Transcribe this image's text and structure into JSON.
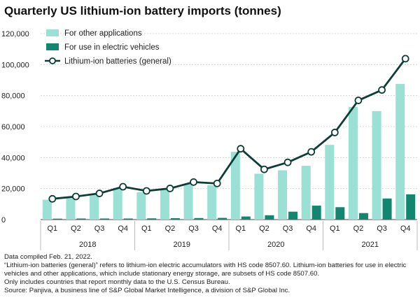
{
  "title": "Quarterly US lithium-ion battery imports (tonnes)",
  "chart_data": {
    "type": "bar",
    "y_ticks": [
      "0",
      "20,000",
      "40,000",
      "60,000",
      "80,000",
      "100,000",
      "120,000"
    ],
    "ylim": [
      0,
      120000
    ],
    "grid": true,
    "legend_position": "top-left",
    "quarters": [
      "Q1",
      "Q2",
      "Q3",
      "Q4",
      "Q1",
      "Q2",
      "Q3",
      "Q4",
      "Q1",
      "Q2",
      "Q3",
      "Q4",
      "Q1",
      "Q2",
      "Q3",
      "Q4"
    ],
    "years": [
      "2018",
      "2019",
      "2020",
      "2021"
    ],
    "series": [
      {
        "name": "For other applications",
        "type": "bar",
        "color": "#9be0d5",
        "values": [
          12800,
          14200,
          16200,
          20500,
          17700,
          19200,
          23200,
          22200,
          43700,
          29600,
          31800,
          34700,
          48200,
          72700,
          70000,
          87500
        ]
      },
      {
        "name": "For use in electric vehicles",
        "type": "bar",
        "color": "#12866f",
        "values": [
          600,
          700,
          700,
          700,
          800,
          900,
          1000,
          1100,
          2000,
          2800,
          5100,
          9000,
          8000,
          4200,
          13600,
          16300
        ]
      },
      {
        "name": "Lithium-ion batteries (general)",
        "type": "line",
        "color": "#0e3d36",
        "values": [
          13400,
          14900,
          16900,
          21200,
          18500,
          20100,
          24200,
          23300,
          45700,
          32400,
          36900,
          43700,
          56200,
          76900,
          83600,
          103800
        ]
      }
    ]
  },
  "notes": {
    "compiled": "Data compiled Feb. 21, 2022.",
    "definition": "“Lithium-ion batteries (general)” refers to lithium-ion electric accumulators with HS code 8507.60. Lithium-ion batteries for use in electric vehicles and other applications, which include stationary energy storage, are subsets of HS code 8507.60.",
    "scope": "Only includes countries that report monthly data to the U.S. Census Bureau.",
    "source": "Source: Panjiva, a business line of S&P Global Market Intelligence, a division of S&P Global Inc."
  }
}
